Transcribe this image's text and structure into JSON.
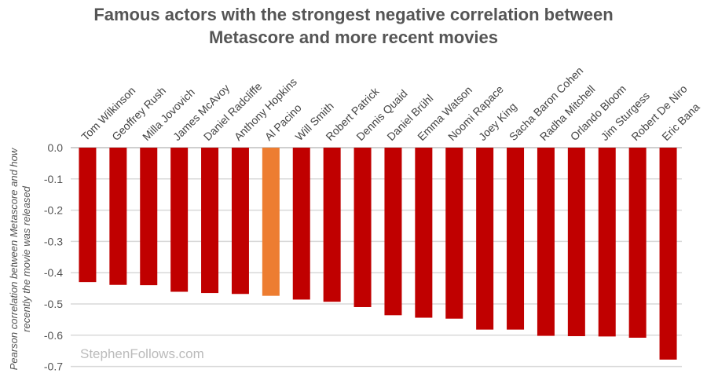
{
  "chart_data": {
    "type": "bar",
    "title_lines": [
      "Famous actors with the strongest negative correlation between",
      "Metascore and more recent movies"
    ],
    "ylabel_lines": [
      "Pearson correlation between Metascore and how",
      "recently the movie was released"
    ],
    "xlabel": "",
    "ylim": [
      -0.7,
      0.0
    ],
    "yticks": [
      "0.0",
      "-0.1",
      "-0.2",
      "-0.3",
      "-0.4",
      "-0.5",
      "-0.6",
      "-0.7"
    ],
    "grid": true,
    "watermark": "StephenFollows.com",
    "colors": {
      "default": "#c00000",
      "highlight": "#ed7d31",
      "grid": "#d9d9d9"
    },
    "highlight": "Al Pacino",
    "categories": [
      "Tom Wilkinson",
      "Geoffrey Rush",
      "Milla Jovovich",
      "James McAvoy",
      "Daniel Radcliffe",
      "Anthony Hopkins",
      "Al Pacino",
      "Will Smith",
      "Robert Patrick",
      "Dennis Quaid",
      "Daniel Brühl",
      "Emma Watson",
      "Noomi Rapace",
      "Joey King",
      "Sacha Baron Cohen",
      "Radha Mitchell",
      "Orlando Bloom",
      "Jim Sturgess",
      "Robert De Niro",
      "Eric Bana"
    ],
    "values": [
      -0.43,
      -0.439,
      -0.44,
      -0.461,
      -0.465,
      -0.468,
      -0.474,
      -0.486,
      -0.493,
      -0.51,
      -0.536,
      -0.544,
      -0.547,
      -0.582,
      -0.582,
      -0.602,
      -0.603,
      -0.604,
      -0.608,
      -0.678
    ]
  }
}
